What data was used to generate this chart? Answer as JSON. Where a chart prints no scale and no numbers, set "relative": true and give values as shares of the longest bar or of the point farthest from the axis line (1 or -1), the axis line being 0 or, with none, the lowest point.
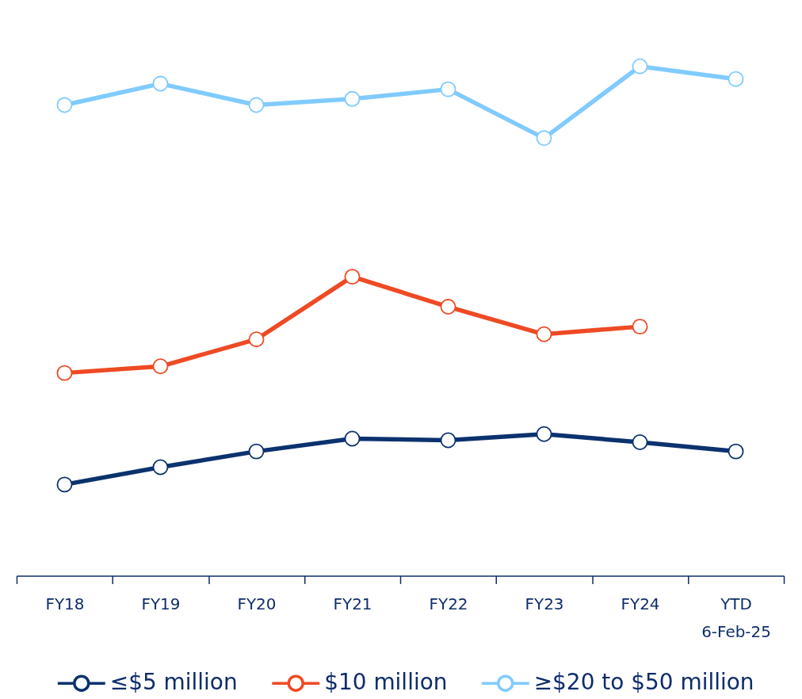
{
  "chart_data": {
    "type": "line",
    "relative": true,
    "categories": [
      "FY18",
      "FY19",
      "FY20",
      "FY21",
      "FY22",
      "FY23",
      "FY24",
      "YTD\n6-Feb-25"
    ],
    "series": [
      {
        "name": "≤$5 million",
        "color": "#0b326e",
        "values": [
          0.179,
          0.213,
          0.244,
          0.269,
          0.266,
          0.278,
          0.262,
          0.244
        ]
      },
      {
        "name": "$10 million",
        "color": "#ee4a24",
        "values": [
          0.398,
          0.411,
          0.464,
          0.587,
          0.528,
          0.474,
          0.489,
          null
        ]
      },
      {
        "name": "≥$20 to $50 million",
        "color": "#80cbff",
        "values": [
          0.924,
          0.966,
          0.924,
          0.936,
          0.955,
          0.859,
          1,
          0.975
        ]
      }
    ],
    "legend": "bottom",
    "marker": "circle",
    "line_style": "solid"
  }
}
